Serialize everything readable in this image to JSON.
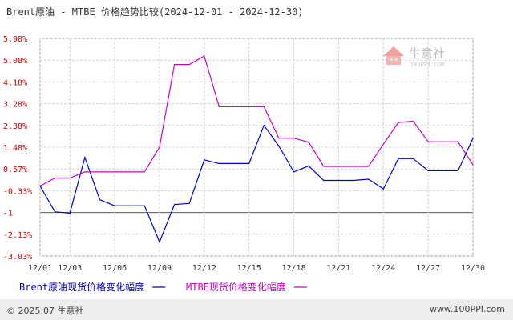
{
  "chart_data": {
    "type": "line",
    "title": "Brent原油 - MTBE 价格趋势比较(2024-12-01 - 2024-12-30)",
    "x": [
      "12/01",
      "12/02",
      "12/03",
      "12/04",
      "12/05",
      "12/06",
      "12/07",
      "12/08",
      "12/09",
      "12/10",
      "12/11",
      "12/12",
      "12/13",
      "12/14",
      "12/15",
      "12/16",
      "12/17",
      "12/18",
      "12/19",
      "12/20",
      "12/21",
      "12/22",
      "12/23",
      "12/24",
      "12/25",
      "12/26",
      "12/27",
      "12/28",
      "12/29",
      "12/30"
    ],
    "x_tick_labels": [
      "12/01",
      "12/03",
      "12/06",
      "12/09",
      "12/12",
      "12/15",
      "12/18",
      "12/21",
      "12/24",
      "12/27",
      "12/30"
    ],
    "y_tick_labels": [
      "5.98%",
      "5.08%",
      "4.18%",
      "3.28%",
      "2.38%",
      "1.48%",
      "0.57%",
      "-0.33%",
      "-1",
      "-2.13%",
      "-3.03%"
    ],
    "ylim": [
      -3.03,
      5.98
    ],
    "grid": true,
    "legend_position": "bottom-left",
    "series": [
      {
        "name": "Brent原油现货价格变化幅度",
        "color": "#0000cc",
        "values": [
          -0.13,
          -1.2,
          -1.25,
          1.05,
          -0.7,
          -0.95,
          -0.95,
          -0.95,
          -2.45,
          -0.9,
          -0.85,
          0.95,
          0.8,
          0.8,
          0.8,
          2.38,
          1.52,
          0.45,
          0.7,
          0.1,
          0.1,
          0.1,
          0.15,
          -0.25,
          1.0,
          1.0,
          0.5,
          0.5,
          0.5,
          1.85
        ]
      },
      {
        "name": "MTBE现货价格变化幅度",
        "color": "#cc00cc",
        "values": [
          -0.13,
          0.2,
          0.2,
          0.45,
          0.45,
          0.45,
          0.45,
          0.45,
          1.48,
          4.9,
          4.9,
          5.25,
          3.15,
          3.15,
          3.15,
          3.15,
          1.85,
          1.85,
          1.68,
          0.68,
          0.68,
          0.68,
          0.68,
          1.6,
          2.5,
          2.55,
          1.7,
          1.7,
          1.7,
          0.75
        ]
      }
    ]
  },
  "watermark": {
    "brand": "生意社",
    "url": "100PPI.COM"
  },
  "footer": {
    "copyright": "© 2025.07 生意社",
    "site": "www.100PPI.com"
  }
}
